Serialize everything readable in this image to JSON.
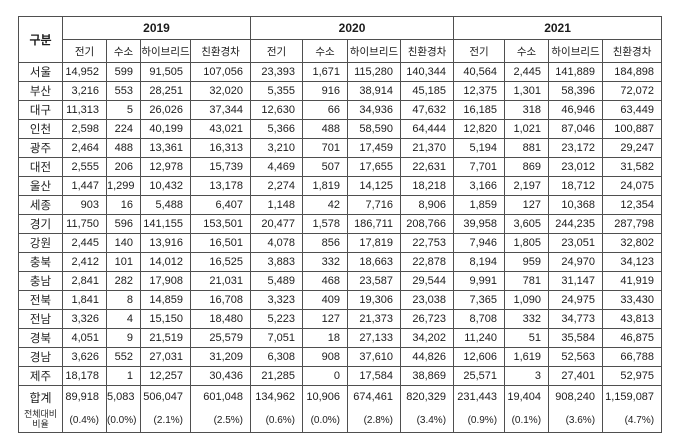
{
  "table": {
    "corner_label": "구분",
    "years": [
      "2019",
      "2020",
      "2021"
    ],
    "measures": [
      "전기",
      "수소",
      "하이브리드",
      "친환경차"
    ],
    "rows": [
      {
        "region": "서울",
        "values": [
          "14,952",
          "599",
          "91,505",
          "107,056",
          "23,393",
          "1,671",
          "115,280",
          "140,344",
          "40,564",
          "2,445",
          "141,889",
          "184,898"
        ]
      },
      {
        "region": "부산",
        "values": [
          "3,216",
          "553",
          "28,251",
          "32,020",
          "5,355",
          "916",
          "38,914",
          "45,185",
          "12,375",
          "1,301",
          "58,396",
          "72,072"
        ]
      },
      {
        "region": "대구",
        "values": [
          "11,313",
          "5",
          "26,026",
          "37,344",
          "12,630",
          "66",
          "34,936",
          "47,632",
          "16,185",
          "318",
          "46,946",
          "63,449"
        ]
      },
      {
        "region": "인천",
        "values": [
          "2,598",
          "224",
          "40,199",
          "43,021",
          "5,366",
          "488",
          "58,590",
          "64,444",
          "12,820",
          "1,021",
          "87,046",
          "100,887"
        ]
      },
      {
        "region": "광주",
        "values": [
          "2,464",
          "488",
          "13,361",
          "16,313",
          "3,210",
          "701",
          "17,459",
          "21,370",
          "5,194",
          "881",
          "23,172",
          "29,247"
        ]
      },
      {
        "region": "대전",
        "values": [
          "2,555",
          "206",
          "12,978",
          "15,739",
          "4,469",
          "507",
          "17,655",
          "22,631",
          "7,701",
          "869",
          "23,012",
          "31,582"
        ]
      },
      {
        "region": "울산",
        "values": [
          "1,447",
          "1,299",
          "10,432",
          "13,178",
          "2,274",
          "1,819",
          "14,125",
          "18,218",
          "3,166",
          "2,197",
          "18,712",
          "24,075"
        ]
      },
      {
        "region": "세종",
        "values": [
          "903",
          "16",
          "5,488",
          "6,407",
          "1,148",
          "42",
          "7,716",
          "8,906",
          "1,859",
          "127",
          "10,368",
          "12,354"
        ]
      },
      {
        "region": "경기",
        "values": [
          "11,750",
          "596",
          "141,155",
          "153,501",
          "20,477",
          "1,578",
          "186,711",
          "208,766",
          "39,958",
          "3,605",
          "244,235",
          "287,798"
        ]
      },
      {
        "region": "강원",
        "values": [
          "2,445",
          "140",
          "13,916",
          "16,501",
          "4,078",
          "856",
          "17,819",
          "22,753",
          "7,946",
          "1,805",
          "23,051",
          "32,802"
        ]
      },
      {
        "region": "충북",
        "values": [
          "2,412",
          "101",
          "14,012",
          "16,525",
          "3,883",
          "332",
          "18,663",
          "22,878",
          "8,194",
          "959",
          "24,970",
          "34,123"
        ]
      },
      {
        "region": "충남",
        "values": [
          "2,841",
          "282",
          "17,908",
          "21,031",
          "5,489",
          "468",
          "23,587",
          "29,544",
          "9,991",
          "781",
          "31,147",
          "41,919"
        ]
      },
      {
        "region": "전북",
        "values": [
          "1,841",
          "8",
          "14,859",
          "16,708",
          "3,323",
          "409",
          "19,306",
          "23,038",
          "7,365",
          "1,090",
          "24,975",
          "33,430"
        ]
      },
      {
        "region": "전남",
        "values": [
          "3,326",
          "4",
          "15,150",
          "18,480",
          "5,223",
          "127",
          "21,373",
          "26,723",
          "8,708",
          "332",
          "34,773",
          "43,813"
        ]
      },
      {
        "region": "경북",
        "values": [
          "4,051",
          "9",
          "21,519",
          "25,579",
          "7,051",
          "18",
          "27,133",
          "34,202",
          "11,240",
          "51",
          "35,584",
          "46,875"
        ]
      },
      {
        "region": "경남",
        "values": [
          "3,626",
          "552",
          "27,031",
          "31,209",
          "6,308",
          "908",
          "37,610",
          "44,826",
          "12,606",
          "1,619",
          "52,563",
          "66,788"
        ]
      },
      {
        "region": "제주",
        "values": [
          "18,178",
          "1",
          "12,257",
          "30,436",
          "21,285",
          "0",
          "17,584",
          "38,869",
          "25,571",
          "3",
          "27,401",
          "52,975"
        ]
      }
    ],
    "total_row": {
      "label": "합계",
      "values": [
        "89,918",
        "5,083",
        "506,047",
        "601,048",
        "134,962",
        "10,906",
        "674,461",
        "820,329",
        "231,443",
        "19,404",
        "908,240",
        "1,159,087"
      ]
    },
    "ratio_row": {
      "label_line1": "전체대비",
      "label_line2": "비율",
      "values": [
        "(0.4%)",
        "(0.0%)",
        "(2.1%)",
        "(2.5%)",
        "(0.6%)",
        "(0.0%)",
        "(2.8%)",
        "(3.4%)",
        "(0.9%)",
        "(0.1%)",
        "(3.6%)",
        "(4.7%)"
      ]
    }
  }
}
